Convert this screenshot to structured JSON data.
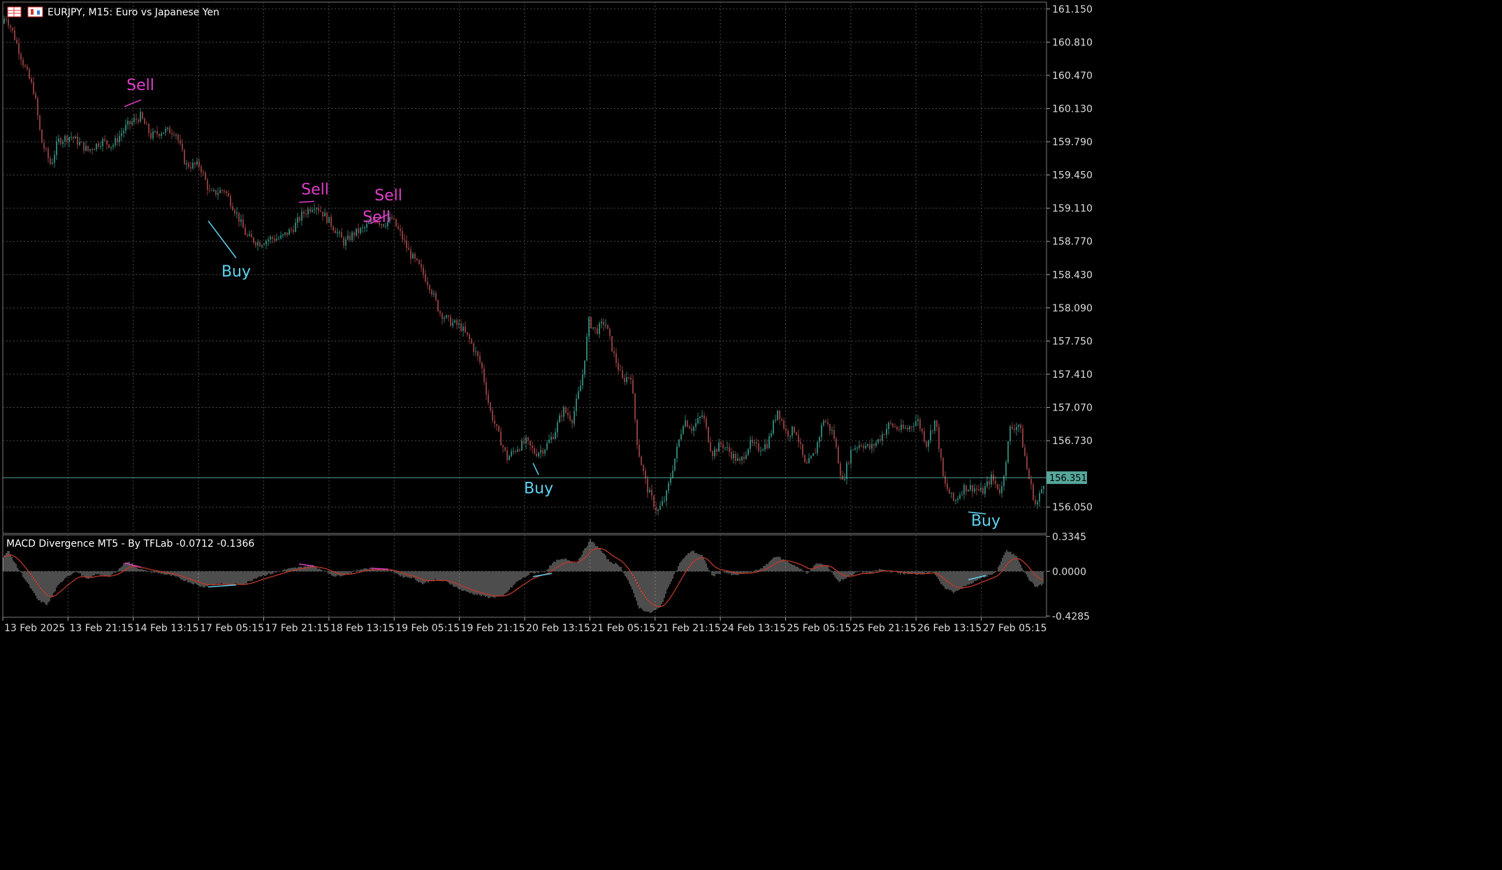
{
  "header": {
    "title": "EURJPY, M15:  Euro vs Japanese Yen",
    "icons": [
      "grid-table-icon",
      "candlestick-chart-icon"
    ]
  },
  "indicator": {
    "label": "MACD Divergence MT5 - By TFLab -0.0712 -0.1366"
  },
  "current_price": "156.351",
  "colors": {
    "background": "#000000",
    "grid": "#4a4a4a",
    "candle_up": "#2f7f72",
    "candle_down": "#8a3b3b",
    "sell": "#e040c8",
    "buy": "#5fd3f0",
    "histogram": "#9a9a9a",
    "signal": "#c0392b",
    "price_tag": "#56a79a"
  },
  "chart_data": [
    {
      "type": "candlestick",
      "title": "EURJPY, M15:  Euro vs Japanese Yen",
      "y_ticks": [
        "161.150",
        "160.810",
        "160.470",
        "160.130",
        "159.790",
        "159.450",
        "159.110",
        "158.770",
        "158.430",
        "158.090",
        "157.750",
        "157.410",
        "157.070",
        "156.730",
        "156.050"
      ],
      "ylim": [
        155.78,
        161.22
      ],
      "x_ticks": [
        "13 Feb 2025",
        "13 Feb 21:15",
        "14 Feb 13:15",
        "17 Feb 05:15",
        "17 Feb 21:15",
        "18 Feb 13:15",
        "19 Feb 05:15",
        "19 Feb 21:15",
        "20 Feb 13:15",
        "21 Feb 05:15",
        "21 Feb 21:15",
        "24 Feb 13:15",
        "25 Feb 05:15",
        "25 Feb 21:15",
        "26 Feb 13:15",
        "27 Feb 05:15"
      ],
      "price_path": [
        [
          0,
          160.8
        ],
        [
          6,
          161.1
        ],
        [
          18,
          160.9
        ],
        [
          32,
          160.6
        ],
        [
          48,
          160.3
        ],
        [
          58,
          159.8
        ],
        [
          72,
          159.55
        ],
        [
          82,
          159.8
        ],
        [
          100,
          159.85
        ],
        [
          125,
          159.7
        ],
        [
          145,
          159.8
        ],
        [
          160,
          159.75
        ],
        [
          180,
          159.95
        ],
        [
          200,
          160.05
        ],
        [
          215,
          159.85
        ],
        [
          232,
          159.9
        ],
        [
          250,
          159.9
        ],
        [
          265,
          159.55
        ],
        [
          285,
          159.55
        ],
        [
          300,
          159.25
        ],
        [
          320,
          159.3
        ],
        [
          338,
          159.05
        ],
        [
          352,
          158.82
        ],
        [
          370,
          158.75
        ],
        [
          385,
          158.8
        ],
        [
          400,
          158.8
        ],
        [
          418,
          158.9
        ],
        [
          432,
          159.05
        ],
        [
          450,
          159.15
        ],
        [
          462,
          159.05
        ],
        [
          478,
          158.9
        ],
        [
          492,
          158.75
        ],
        [
          505,
          158.85
        ],
        [
          520,
          158.9
        ],
        [
          535,
          159.0
        ],
        [
          548,
          158.95
        ],
        [
          560,
          159.0
        ],
        [
          572,
          158.85
        ],
        [
          585,
          158.65
        ],
        [
          600,
          158.5
        ],
        [
          615,
          158.3
        ],
        [
          628,
          158.05
        ],
        [
          642,
          157.95
        ],
        [
          658,
          157.9
        ],
        [
          672,
          157.75
        ],
        [
          688,
          157.5
        ],
        [
          700,
          157.05
        ],
        [
          712,
          156.8
        ],
        [
          725,
          156.55
        ],
        [
          738,
          156.65
        ],
        [
          752,
          156.72
        ],
        [
          765,
          156.6
        ],
        [
          778,
          156.65
        ],
        [
          792,
          156.8
        ],
        [
          805,
          157.05
        ],
        [
          818,
          156.95
        ],
        [
          832,
          157.35
        ],
        [
          842,
          157.95
        ],
        [
          852,
          157.85
        ],
        [
          865,
          157.95
        ],
        [
          878,
          157.6
        ],
        [
          890,
          157.35
        ],
        [
          902,
          157.4
        ],
        [
          912,
          156.65
        ],
        [
          925,
          156.25
        ],
        [
          940,
          156.0
        ],
        [
          952,
          156.15
        ],
        [
          965,
          156.55
        ],
        [
          978,
          156.95
        ],
        [
          990,
          156.85
        ],
        [
          1005,
          157.0
        ],
        [
          1018,
          156.6
        ],
        [
          1032,
          156.7
        ],
        [
          1045,
          156.6
        ],
        [
          1058,
          156.5
        ],
        [
          1072,
          156.7
        ],
        [
          1085,
          156.65
        ],
        [
          1098,
          156.7
        ],
        [
          1112,
          157.05
        ],
        [
          1125,
          156.8
        ],
        [
          1138,
          156.85
        ],
        [
          1152,
          156.45
        ],
        [
          1165,
          156.6
        ],
        [
          1178,
          156.95
        ],
        [
          1192,
          156.8
        ],
        [
          1205,
          156.3
        ],
        [
          1218,
          156.65
        ],
        [
          1232,
          156.7
        ],
        [
          1245,
          156.65
        ],
        [
          1258,
          156.75
        ],
        [
          1272,
          156.9
        ],
        [
          1285,
          156.85
        ],
        [
          1298,
          156.85
        ],
        [
          1312,
          156.95
        ],
        [
          1325,
          156.7
        ],
        [
          1338,
          156.95
        ],
        [
          1350,
          156.3
        ],
        [
          1365,
          156.1
        ],
        [
          1378,
          156.25
        ],
        [
          1392,
          156.25
        ],
        [
          1405,
          156.2
        ],
        [
          1418,
          156.35
        ],
        [
          1432,
          156.2
        ],
        [
          1445,
          156.85
        ],
        [
          1458,
          156.9
        ],
        [
          1470,
          156.4
        ],
        [
          1482,
          156.05
        ],
        [
          1495,
          156.35
        ]
      ],
      "signals": [
        {
          "label": "Sell",
          "type": "sell",
          "x": 201,
          "y": 160.25,
          "text_y": 160.32,
          "line": [
            [
              178,
              160.15
            ],
            [
              202,
              160.22
            ]
          ]
        },
        {
          "label": "Sell",
          "type": "sell",
          "x": 451,
          "y": 159.18,
          "text_y": 159.25,
          "line": [
            [
              428,
              159.17
            ],
            [
              450,
              159.18
            ]
          ]
        },
        {
          "label": "Sell",
          "type": "sell",
          "x": 556,
          "y": 159.12,
          "text_y": 159.19,
          "line": [
            [
              530,
              158.95
            ],
            [
              556,
              159.05
            ]
          ]
        },
        {
          "label": "Sell",
          "type": "sell",
          "x": 539,
          "y": 158.91,
          "text_y": 158.97,
          "line": []
        },
        {
          "label": "Buy",
          "type": "buy",
          "x": 338,
          "y": 158.48,
          "text_y": 158.41,
          "line": [
            [
              298,
              158.98
            ],
            [
              338,
              158.6
            ]
          ]
        },
        {
          "label": "Buy",
          "type": "buy",
          "x": 771,
          "y": 156.26,
          "text_y": 156.19,
          "line": [
            [
              763,
              156.5
            ],
            [
              771,
              156.38
            ]
          ]
        },
        {
          "label": "Buy",
          "type": "buy",
          "x": 1411,
          "y": 155.92,
          "text_y": 155.86,
          "line": [
            [
              1386,
              156.0
            ],
            [
              1411,
              155.98
            ]
          ]
        }
      ]
    },
    {
      "type": "histogram",
      "title": "MACD Divergence MT5 - By TFLab -0.0712 -0.1366",
      "y_ticks": [
        "0.3345",
        "0.0000",
        "-0.4285"
      ],
      "ylim": [
        -0.44,
        0.35
      ],
      "macd_path": [
        [
          0,
          0.1
        ],
        [
          12,
          0.2
        ],
        [
          24,
          0.05
        ],
        [
          38,
          -0.1
        ],
        [
          55,
          -0.28
        ],
        [
          68,
          -0.32
        ],
        [
          82,
          -0.15
        ],
        [
          95,
          -0.05
        ],
        [
          110,
          0.0
        ],
        [
          125,
          -0.08
        ],
        [
          140,
          -0.02
        ],
        [
          155,
          -0.06
        ],
        [
          170,
          0.02
        ],
        [
          182,
          0.1
        ],
        [
          195,
          0.04
        ],
        [
          210,
          0.0
        ],
        [
          230,
          -0.02
        ],
        [
          250,
          -0.05
        ],
        [
          270,
          -0.1
        ],
        [
          290,
          -0.15
        ],
        [
          310,
          -0.12
        ],
        [
          330,
          -0.13
        ],
        [
          350,
          -0.12
        ],
        [
          370,
          -0.05
        ],
        [
          390,
          -0.02
        ],
        [
          410,
          0.02
        ],
        [
          430,
          0.04
        ],
        [
          445,
          0.06
        ],
        [
          460,
          0.02
        ],
        [
          480,
          -0.05
        ],
        [
          500,
          -0.02
        ],
        [
          520,
          0.03
        ],
        [
          540,
          0.02
        ],
        [
          560,
          0.01
        ],
        [
          575,
          -0.05
        ],
        [
          590,
          -0.06
        ],
        [
          605,
          -0.12
        ],
        [
          620,
          -0.08
        ],
        [
          640,
          -0.1
        ],
        [
          660,
          -0.18
        ],
        [
          680,
          -0.22
        ],
        [
          700,
          -0.25
        ],
        [
          720,
          -0.24
        ],
        [
          740,
          -0.1
        ],
        [
          760,
          -0.02
        ],
        [
          780,
          0.0
        ],
        [
          795,
          0.1
        ],
        [
          810,
          0.12
        ],
        [
          825,
          0.08
        ],
        [
          845,
          0.3
        ],
        [
          858,
          0.22
        ],
        [
          872,
          0.1
        ],
        [
          888,
          0.05
        ],
        [
          900,
          -0.1
        ],
        [
          915,
          -0.35
        ],
        [
          930,
          -0.4
        ],
        [
          945,
          -0.35
        ],
        [
          960,
          -0.1
        ],
        [
          975,
          0.1
        ],
        [
          990,
          0.2
        ],
        [
          1005,
          0.15
        ],
        [
          1020,
          -0.05
        ],
        [
          1035,
          0.0
        ],
        [
          1050,
          -0.04
        ],
        [
          1065,
          -0.02
        ],
        [
          1080,
          0.0
        ],
        [
          1095,
          0.05
        ],
        [
          1110,
          0.15
        ],
        [
          1125,
          0.1
        ],
        [
          1140,
          0.05
        ],
        [
          1155,
          -0.02
        ],
        [
          1170,
          0.08
        ],
        [
          1185,
          0.05
        ],
        [
          1200,
          -0.1
        ],
        [
          1215,
          -0.05
        ],
        [
          1230,
          0.0
        ],
        [
          1245,
          -0.02
        ],
        [
          1260,
          0.02
        ],
        [
          1275,
          0.0
        ],
        [
          1290,
          -0.02
        ],
        [
          1305,
          -0.03
        ],
        [
          1320,
          -0.02
        ],
        [
          1335,
          0.0
        ],
        [
          1350,
          -0.15
        ],
        [
          1365,
          -0.2
        ],
        [
          1380,
          -0.15
        ],
        [
          1395,
          -0.1
        ],
        [
          1410,
          -0.05
        ],
        [
          1425,
          -0.02
        ],
        [
          1440,
          0.2
        ],
        [
          1455,
          0.15
        ],
        [
          1470,
          -0.05
        ],
        [
          1482,
          -0.15
        ],
        [
          1495,
          -0.12
        ]
      ],
      "divergence_lines": [
        {
          "type": "sell",
          "points": [
            [
              178,
              0.08
            ],
            [
              202,
              0.04
            ]
          ]
        },
        {
          "type": "sell",
          "points": [
            [
              428,
              0.07
            ],
            [
              450,
              0.05
            ]
          ]
        },
        {
          "type": "sell",
          "points": [
            [
              530,
              0.03
            ],
            [
              556,
              0.02
            ]
          ]
        },
        {
          "type": "buy",
          "points": [
            [
              298,
              -0.15
            ],
            [
              338,
              -0.13
            ]
          ]
        },
        {
          "type": "buy",
          "points": [
            [
              763,
              -0.05
            ],
            [
              790,
              -0.02
            ]
          ]
        },
        {
          "type": "buy",
          "points": [
            [
              1386,
              -0.08
            ],
            [
              1411,
              -0.04
            ]
          ]
        }
      ]
    }
  ]
}
